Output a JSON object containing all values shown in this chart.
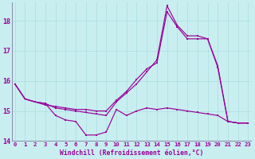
{
  "xlabel": "Windchill (Refroidissement éolien,°C)",
  "background_color": "#c8eef0",
  "line_color": "#990099",
  "grid_color": "#aadde0",
  "ylim": [
    14,
    18.6
  ],
  "xlim": [
    -0.3,
    23.3
  ],
  "yticks": [
    14,
    15,
    16,
    17,
    18
  ],
  "xticks": [
    0,
    1,
    2,
    3,
    4,
    5,
    6,
    7,
    8,
    9,
    10,
    11,
    12,
    13,
    14,
    15,
    16,
    17,
    18,
    19,
    20,
    21,
    22,
    23
  ],
  "line1_x": [
    0,
    1,
    2,
    3,
    4,
    5,
    6,
    7,
    8,
    9,
    10,
    11,
    12,
    13,
    14,
    15,
    16,
    17,
    18,
    19,
    20,
    21,
    22,
    23
  ],
  "line1_y": [
    15.9,
    15.4,
    15.3,
    15.25,
    14.85,
    14.7,
    14.65,
    14.2,
    14.2,
    14.3,
    15.05,
    14.85,
    15.0,
    15.1,
    15.05,
    15.1,
    15.05,
    15.0,
    14.95,
    14.9,
    14.85,
    14.65,
    14.6,
    14.6
  ],
  "line2_x": [
    0,
    1,
    2,
    3,
    4,
    5,
    6,
    7,
    8,
    9,
    10,
    11,
    12,
    13,
    14,
    15,
    16,
    17,
    18,
    19,
    20,
    21,
    22,
    23
  ],
  "line2_y": [
    15.9,
    15.4,
    15.3,
    15.2,
    15.15,
    15.1,
    15.05,
    15.05,
    15.0,
    15.0,
    15.35,
    15.65,
    16.05,
    16.4,
    16.6,
    18.3,
    17.8,
    17.4,
    17.4,
    17.4,
    16.45,
    14.65,
    14.6,
    14.6
  ],
  "line3_x": [
    0,
    1,
    2,
    3,
    4,
    5,
    6,
    7,
    8,
    9,
    10,
    11,
    12,
    13,
    14,
    15,
    16,
    17,
    18,
    19,
    20,
    21,
    22,
    23
  ],
  "line3_y": [
    15.9,
    15.4,
    15.3,
    15.25,
    15.1,
    15.05,
    15.0,
    14.95,
    14.9,
    14.85,
    15.3,
    15.6,
    15.9,
    16.3,
    16.7,
    18.5,
    17.85,
    17.5,
    17.5,
    17.4,
    16.5,
    14.65,
    14.6,
    14.6
  ]
}
